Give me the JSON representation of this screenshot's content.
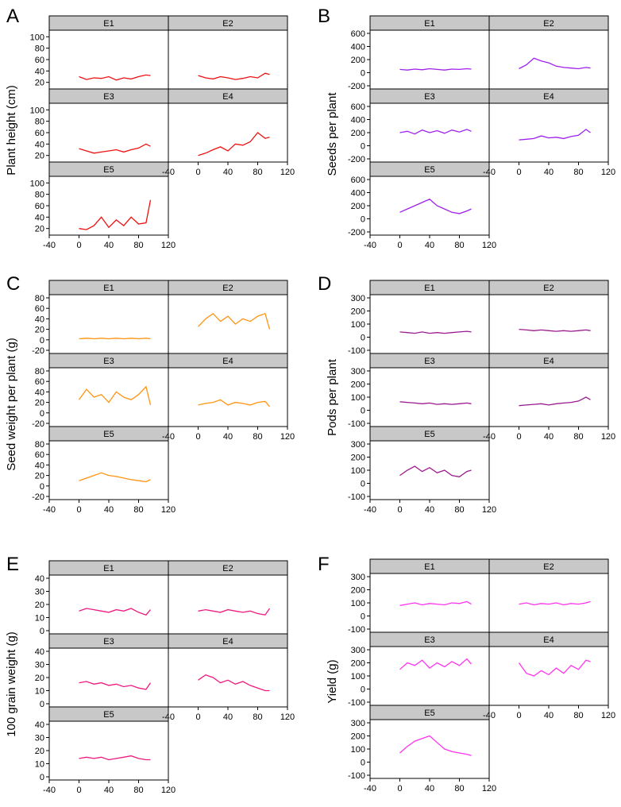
{
  "chart_data": [
    {
      "letter": "A",
      "ylabel": "Plant height (cm)",
      "type": "line",
      "color": "#ee1111",
      "xlim": [
        -40,
        120
      ],
      "xticks": [
        "-40",
        "0",
        "40",
        "80",
        "120"
      ],
      "ylim": [
        14,
        106
      ],
      "yticks": [
        "20",
        "40",
        "60",
        "80",
        "100"
      ],
      "panels": [
        {
          "label": "E1",
          "x": [
            0,
            10,
            20,
            30,
            40,
            50,
            60,
            70,
            80,
            90,
            96
          ],
          "y": [
            30,
            25,
            28,
            27,
            30,
            24,
            28,
            26,
            30,
            33,
            32
          ]
        },
        {
          "label": "E2",
          "x": [
            0,
            10,
            20,
            30,
            40,
            50,
            60,
            70,
            80,
            90,
            96
          ],
          "y": [
            32,
            28,
            26,
            30,
            28,
            25,
            27,
            30,
            28,
            36,
            34
          ]
        },
        {
          "label": "E3",
          "x": [
            0,
            10,
            20,
            30,
            40,
            50,
            60,
            70,
            80,
            90,
            96
          ],
          "y": [
            32,
            28,
            24,
            26,
            28,
            30,
            26,
            30,
            33,
            40,
            36
          ]
        },
        {
          "label": "E4",
          "x": [
            0,
            10,
            20,
            30,
            40,
            50,
            60,
            70,
            80,
            90,
            96
          ],
          "y": [
            20,
            24,
            30,
            35,
            28,
            40,
            38,
            44,
            60,
            50,
            52
          ]
        },
        {
          "label": "E5",
          "x": [
            0,
            10,
            20,
            30,
            40,
            50,
            60,
            70,
            80,
            90,
            96
          ],
          "y": [
            20,
            18,
            25,
            40,
            22,
            35,
            25,
            40,
            28,
            30,
            70
          ]
        }
      ]
    },
    {
      "letter": "B",
      "ylabel": "Seeds per plant",
      "type": "line",
      "color": "#a020f0",
      "xlim": [
        -40,
        120
      ],
      "xticks": [
        "-40",
        "0",
        "40",
        "80",
        "120"
      ],
      "ylim": [
        -200,
        600
      ],
      "yticks": [
        "-200",
        "0",
        "200",
        "400",
        "600"
      ],
      "panels": [
        {
          "label": "E1",
          "x": [
            0,
            10,
            20,
            30,
            40,
            50,
            60,
            70,
            80,
            90,
            96
          ],
          "y": [
            50,
            40,
            55,
            45,
            60,
            50,
            40,
            55,
            50,
            60,
            55
          ]
        },
        {
          "label": "E2",
          "x": [
            0,
            10,
            20,
            30,
            40,
            50,
            60,
            70,
            80,
            90,
            96
          ],
          "y": [
            60,
            120,
            220,
            180,
            150,
            100,
            80,
            70,
            60,
            80,
            70
          ]
        },
        {
          "label": "E3",
          "x": [
            0,
            10,
            20,
            30,
            40,
            50,
            60,
            70,
            80,
            90,
            96
          ],
          "y": [
            200,
            220,
            180,
            240,
            200,
            230,
            190,
            240,
            210,
            250,
            220
          ]
        },
        {
          "label": "E4",
          "x": [
            0,
            10,
            20,
            30,
            40,
            50,
            60,
            70,
            80,
            90,
            96
          ],
          "y": [
            90,
            100,
            110,
            150,
            120,
            130,
            110,
            140,
            160,
            250,
            200
          ]
        },
        {
          "label": "E5",
          "x": [
            0,
            10,
            20,
            30,
            40,
            50,
            60,
            70,
            80,
            90,
            96
          ],
          "y": [
            100,
            150,
            200,
            250,
            300,
            200,
            150,
            100,
            80,
            120,
            150
          ]
        }
      ]
    },
    {
      "letter": "C",
      "ylabel": "Seed weight per plant (g)",
      "type": "line",
      "color": "#ff9410",
      "xlim": [
        -40,
        120
      ],
      "xticks": [
        "-40",
        "0",
        "40",
        "80",
        "120"
      ],
      "ylim": [
        -20,
        80
      ],
      "yticks": [
        "-20",
        "0",
        "20",
        "40",
        "60",
        "80"
      ],
      "panels": [
        {
          "label": "E1",
          "x": [
            0,
            10,
            20,
            30,
            40,
            50,
            60,
            70,
            80,
            90,
            96
          ],
          "y": [
            2,
            3,
            2,
            3,
            2,
            3,
            2,
            3,
            2,
            3,
            2
          ]
        },
        {
          "label": "E2",
          "x": [
            0,
            10,
            20,
            30,
            40,
            50,
            60,
            70,
            80,
            90,
            96
          ],
          "y": [
            25,
            40,
            50,
            35,
            45,
            30,
            40,
            35,
            45,
            50,
            20
          ]
        },
        {
          "label": "E3",
          "x": [
            0,
            10,
            20,
            30,
            40,
            50,
            60,
            70,
            80,
            90,
            96
          ],
          "y": [
            25,
            45,
            30,
            35,
            20,
            40,
            30,
            25,
            35,
            50,
            15
          ]
        },
        {
          "label": "E4",
          "x": [
            0,
            10,
            20,
            30,
            40,
            50,
            60,
            70,
            80,
            90,
            96
          ],
          "y": [
            15,
            18,
            20,
            25,
            15,
            20,
            18,
            15,
            20,
            22,
            12
          ]
        },
        {
          "label": "E5",
          "x": [
            0,
            10,
            20,
            30,
            40,
            50,
            60,
            70,
            80,
            90,
            96
          ],
          "y": [
            10,
            15,
            20,
            25,
            20,
            18,
            15,
            12,
            10,
            8,
            12
          ]
        }
      ]
    },
    {
      "letter": "D",
      "ylabel": "Pods per plant",
      "type": "line",
      "color": "#9b1a8e",
      "xlim": [
        -40,
        120
      ],
      "xticks": [
        "-40",
        "0",
        "40",
        "80",
        "120"
      ],
      "ylim": [
        -100,
        300
      ],
      "yticks": [
        "-100",
        "0",
        "100",
        "200",
        "300"
      ],
      "panels": [
        {
          "label": "E1",
          "x": [
            0,
            10,
            20,
            30,
            40,
            50,
            60,
            70,
            80,
            90,
            96
          ],
          "y": [
            40,
            35,
            30,
            40,
            30,
            35,
            30,
            35,
            40,
            45,
            40
          ]
        },
        {
          "label": "E2",
          "x": [
            0,
            10,
            20,
            30,
            40,
            50,
            60,
            70,
            80,
            90,
            96
          ],
          "y": [
            60,
            55,
            50,
            55,
            50,
            45,
            50,
            45,
            50,
            55,
            50
          ]
        },
        {
          "label": "E3",
          "x": [
            0,
            10,
            20,
            30,
            40,
            50,
            60,
            70,
            80,
            90,
            96
          ],
          "y": [
            65,
            60,
            55,
            50,
            55,
            45,
            50,
            45,
            50,
            55,
            50
          ]
        },
        {
          "label": "E4",
          "x": [
            0,
            10,
            20,
            30,
            40,
            50,
            60,
            70,
            80,
            90,
            96
          ],
          "y": [
            35,
            40,
            45,
            50,
            40,
            50,
            55,
            60,
            70,
            100,
            80
          ]
        },
        {
          "label": "E5",
          "x": [
            0,
            10,
            20,
            30,
            40,
            50,
            60,
            70,
            80,
            90,
            96
          ],
          "y": [
            60,
            100,
            130,
            90,
            120,
            80,
            100,
            60,
            50,
            90,
            100
          ]
        }
      ]
    },
    {
      "letter": "E",
      "ylabel": "100 grain weight (g)",
      "type": "line",
      "color": "#ee1a80",
      "xlim": [
        -40,
        120
      ],
      "xticks": [
        "-40",
        "0",
        "40",
        "80",
        "120"
      ],
      "ylim": [
        0,
        40
      ],
      "yticks": [
        "0",
        "10",
        "20",
        "30",
        "40"
      ],
      "panels": [
        {
          "label": "E1",
          "x": [
            0,
            10,
            20,
            30,
            40,
            50,
            60,
            70,
            80,
            90,
            96
          ],
          "y": [
            15,
            17,
            16,
            15,
            14,
            16,
            15,
            17,
            14,
            12,
            16
          ]
        },
        {
          "label": "E2",
          "x": [
            0,
            10,
            20,
            30,
            40,
            50,
            60,
            70,
            80,
            90,
            96
          ],
          "y": [
            15,
            16,
            15,
            14,
            16,
            15,
            14,
            15,
            13,
            12,
            17
          ]
        },
        {
          "label": "E3",
          "x": [
            0,
            10,
            20,
            30,
            40,
            50,
            60,
            70,
            80,
            90,
            96
          ],
          "y": [
            16,
            17,
            15,
            16,
            14,
            15,
            13,
            14,
            12,
            11,
            16
          ]
        },
        {
          "label": "E4",
          "x": [
            0,
            10,
            20,
            30,
            40,
            50,
            60,
            70,
            80,
            90,
            96
          ],
          "y": [
            18,
            22,
            20,
            16,
            18,
            15,
            17,
            14,
            12,
            10,
            10
          ]
        },
        {
          "label": "E5",
          "x": [
            0,
            10,
            20,
            30,
            40,
            50,
            60,
            70,
            80,
            90,
            96
          ],
          "y": [
            14,
            15,
            14,
            15,
            13,
            14,
            15,
            16,
            14,
            13,
            13
          ]
        }
      ]
    },
    {
      "letter": "F",
      "ylabel": "Yield (g)",
      "type": "line",
      "color": "#ff33ee",
      "xlim": [
        -40,
        120
      ],
      "xticks": [
        "-40",
        "0",
        "40",
        "80",
        "120"
      ],
      "ylim": [
        -100,
        300
      ],
      "yticks": [
        "-100",
        "0",
        "100",
        "200",
        "300"
      ],
      "panels": [
        {
          "label": "E1",
          "x": [
            0,
            10,
            20,
            30,
            40,
            50,
            60,
            70,
            80,
            90,
            96
          ],
          "y": [
            80,
            90,
            100,
            85,
            95,
            90,
            85,
            100,
            95,
            110,
            90
          ]
        },
        {
          "label": "E2",
          "x": [
            0,
            10,
            20,
            30,
            40,
            50,
            60,
            70,
            80,
            90,
            96
          ],
          "y": [
            90,
            100,
            85,
            95,
            90,
            100,
            85,
            95,
            90,
            100,
            110
          ]
        },
        {
          "label": "E3",
          "x": [
            0,
            10,
            20,
            30,
            40,
            50,
            60,
            70,
            80,
            90,
            96
          ],
          "y": [
            150,
            200,
            180,
            220,
            160,
            200,
            170,
            210,
            180,
            230,
            190
          ]
        },
        {
          "label": "E4",
          "x": [
            0,
            10,
            20,
            30,
            40,
            50,
            60,
            70,
            80,
            90,
            96
          ],
          "y": [
            200,
            120,
            100,
            140,
            110,
            160,
            120,
            180,
            150,
            220,
            210
          ]
        },
        {
          "label": "E5",
          "x": [
            0,
            10,
            20,
            30,
            40,
            50,
            60,
            70,
            80,
            90,
            96
          ],
          "y": [
            70,
            120,
            160,
            180,
            200,
            150,
            100,
            80,
            70,
            60,
            50
          ]
        }
      ]
    }
  ]
}
